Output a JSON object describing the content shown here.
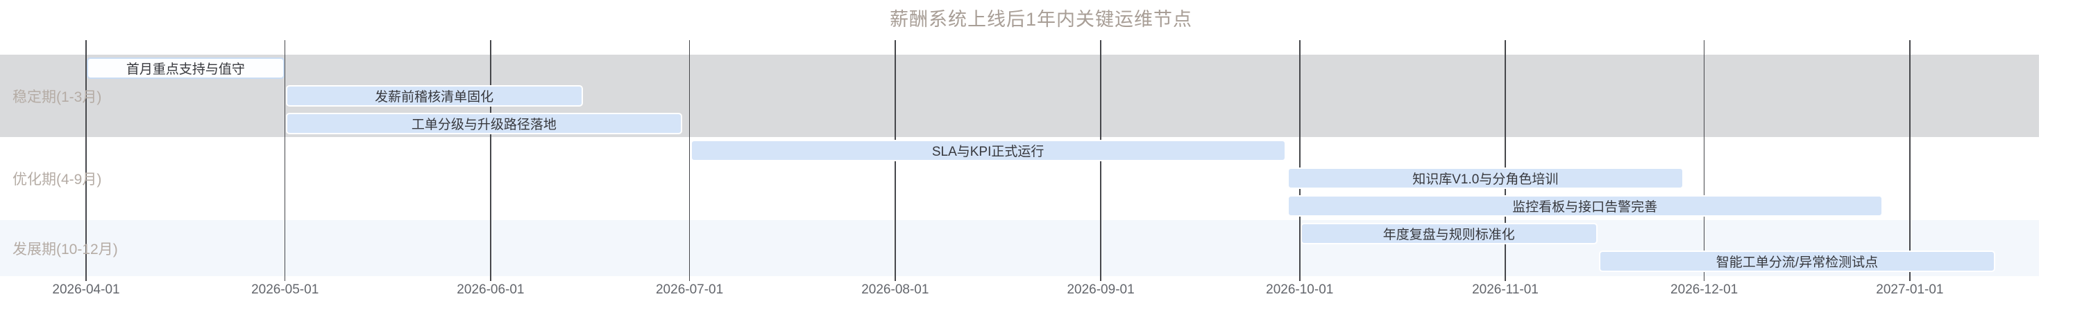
{
  "colors": {
    "title": "#a89e96",
    "row_label": "#b5aca5",
    "axis_label": "#63666c",
    "gridline": "#46474b",
    "bar_fill": "#d5e4f8",
    "bar_border": "#ffffff",
    "outline_bar_fill": "#fdfeff",
    "outline_bar_border": "#c9dcf3",
    "bar_text": "#37383d",
    "band_stable": "#d9dadc",
    "band_optimize": "#ffffff",
    "band_develop": "#f3f7fc"
  },
  "chart_data": {
    "type": "gantt",
    "title": "薪酬系统上线后1年内关键运维节点",
    "x_axis": {
      "start": "2026-04-01",
      "end": "2027-01-01",
      "tick_labels": [
        "2026-04-01",
        "2026-05-01",
        "2026-06-01",
        "2026-07-01",
        "2026-08-01",
        "2026-09-01",
        "2026-10-01",
        "2026-11-01",
        "2026-12-01",
        "2027-01-01"
      ]
    },
    "grid": "vertical-month-lines",
    "legend": "none",
    "rows": [
      {
        "label": "稳定期(1-3月)",
        "band": "band_stable",
        "tasks": [
          {
            "name": "首月重点支持与值守",
            "start": "2026-04-01",
            "end": "2026-05-01",
            "style": "outline"
          },
          {
            "name": "发薪前稽核清单固化",
            "start": "2026-05-01",
            "end": "2026-06-15",
            "style": "fill"
          },
          {
            "name": "工单分级与升级路径落地",
            "start": "2026-05-01",
            "end": "2026-06-30",
            "style": "fill"
          }
        ]
      },
      {
        "label": "优化期(4-9月)",
        "band": "band_optimize",
        "tasks": [
          {
            "name": "SLA与KPI正式运行",
            "start": "2026-07-01",
            "end": "2026-09-29",
            "style": "fill"
          },
          {
            "name": "知识库V1.0与分角色培训",
            "start": "2026-09-29",
            "end": "2026-11-28",
            "style": "fill"
          },
          {
            "name": "监控看板与接口告警完善",
            "start": "2026-09-29",
            "end": "2026-12-28",
            "style": "fill"
          }
        ]
      },
      {
        "label": "发展期(10-12月)",
        "band": "band_develop",
        "tasks": [
          {
            "name": "年度复盘与规则标准化",
            "start": "2026-10-01",
            "end": "2026-11-15",
            "style": "fill"
          },
          {
            "name": "智能工单分流/异常检测试点",
            "start": "2026-11-15",
            "end": "2027-01-14",
            "style": "fill"
          }
        ]
      }
    ]
  }
}
